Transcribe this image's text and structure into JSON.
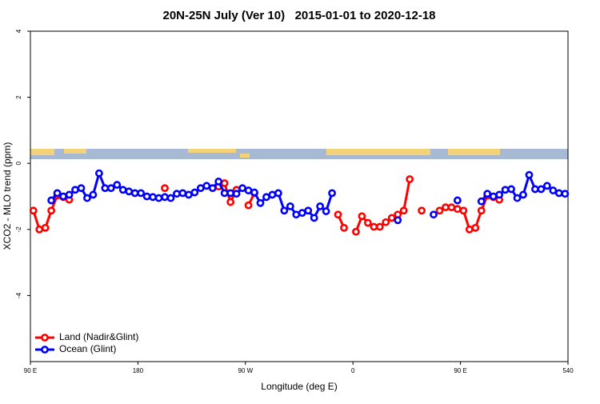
{
  "chart_data": {
    "type": "line",
    "title": "20N-25N July (Ver 10)   2015-01-01 to 2020-12-18",
    "x_label": "Longitude (deg E)",
    "y_label": "XCO2 - MLO trend (ppm)",
    "x": [
      92.5,
      97.5,
      102.5,
      107.5,
      112.5,
      117.5,
      122.5,
      127.5,
      132.5,
      137.5,
      142.5,
      147.5,
      152.5,
      157.5,
      162.5,
      167.5,
      172.5,
      177.5,
      182.5,
      187.5,
      192.5,
      197.5,
      202.5,
      207.5,
      212.5,
      217.5,
      222.5,
      227.5,
      232.5,
      237.5,
      242.5,
      247.5,
      252.5,
      257.5,
      262.5,
      267.5,
      272.5,
      277.5,
      282.5,
      287.5,
      292.5,
      297.5,
      302.5,
      307.5,
      312.5,
      317.5,
      322.5,
      327.5,
      332.5,
      337.5,
      342.5,
      347.5,
      352.5,
      357.5,
      362.5,
      367.5,
      372.5,
      377.5,
      382.5,
      387.5,
      392.5,
      397.5,
      402.5,
      407.5,
      412.5,
      417.5,
      422.5,
      427.5,
      432.5,
      437.5,
      442.5,
      447.5,
      452.5,
      457.5,
      462.5,
      467.5,
      472.5,
      477.5,
      482.5,
      487.5,
      492.5,
      497.5,
      502.5,
      507.5,
      512.5,
      517.5,
      522.5,
      527.5,
      532.5,
      537.5
    ],
    "series": [
      {
        "name": "Land (Nadir&Glint)",
        "color": "#ff0000",
        "values": [
          -1.43,
          -2.0,
          -1.95,
          -1.43,
          -0.97,
          -1.02,
          -1.1,
          null,
          null,
          null,
          null,
          null,
          null,
          null,
          null,
          null,
          null,
          null,
          null,
          null,
          null,
          null,
          -0.75,
          null,
          null,
          null,
          null,
          null,
          null,
          null,
          null,
          -0.7,
          -0.6,
          -1.17,
          -0.8,
          null,
          -1.27,
          -0.9,
          null,
          null,
          null,
          null,
          null,
          null,
          null,
          null,
          null,
          null,
          null,
          null,
          null,
          -1.55,
          -1.95,
          null,
          -2.07,
          -1.6,
          -1.8,
          -1.92,
          -1.92,
          -1.78,
          -1.65,
          -1.55,
          -1.43,
          -0.48,
          null,
          -1.43,
          null,
          null,
          -1.43,
          -1.33,
          -1.33,
          -1.38,
          -1.43,
          -2.0,
          -1.95,
          -1.43,
          -0.97,
          -1.02,
          -1.1,
          null,
          null,
          null,
          null,
          null,
          null,
          null,
          null,
          null,
          null,
          null
        ]
      },
      {
        "name": "Ocean (Glint)",
        "color": "#0000ff",
        "values": [
          null,
          null,
          null,
          -1.12,
          -0.9,
          -1.0,
          -0.95,
          -0.8,
          -0.75,
          -1.05,
          -0.95,
          -0.3,
          -0.75,
          -0.75,
          -0.65,
          -0.8,
          -0.85,
          -0.9,
          -0.9,
          -1.0,
          -1.02,
          -1.05,
          -1.02,
          -1.05,
          -0.92,
          -0.9,
          -0.95,
          -0.88,
          -0.75,
          -0.68,
          -0.75,
          -0.55,
          -0.9,
          -0.9,
          -0.92,
          -0.75,
          -0.82,
          -0.88,
          -1.2,
          -1.02,
          -0.95,
          -0.9,
          -1.43,
          -1.3,
          -1.55,
          -1.5,
          -1.43,
          -1.65,
          -1.3,
          -1.45,
          -0.9,
          null,
          null,
          null,
          null,
          null,
          null,
          null,
          null,
          null,
          null,
          -1.72,
          null,
          null,
          null,
          null,
          null,
          -1.55,
          null,
          null,
          null,
          -1.12,
          null,
          null,
          null,
          -1.15,
          -0.92,
          -1.0,
          -0.95,
          -0.8,
          -0.78,
          -1.05,
          -0.95,
          -0.35,
          -0.78,
          -0.78,
          -0.68,
          -0.82,
          -0.9,
          -0.92
        ]
      }
    ],
    "xlim": [
      90,
      540
    ],
    "xticks": [
      {
        "value": 90,
        "label": "90 E"
      },
      180,
      {
        "value": 270,
        "label": "90 W"
      },
      {
        "value": 360,
        "label": "0"
      },
      {
        "value": 450,
        "label": "90 E"
      },
      540
    ],
    "ylim": [
      -6,
      4
    ],
    "yticks": [
      -4,
      -2,
      0,
      2,
      4
    ],
    "legend": "lower left"
  }
}
